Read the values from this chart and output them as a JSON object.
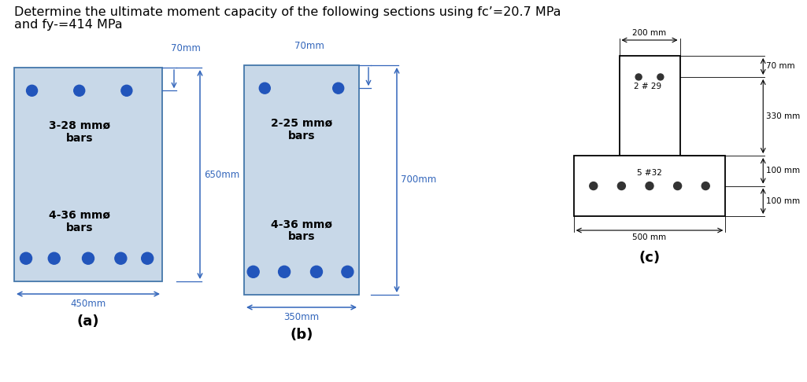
{
  "title_line1": "Determine the ultimate moment capacity of the following sections using fc’=20.7 MPa",
  "title_line2": "and fy-=414 MPa",
  "section_a": {
    "label": "(a)",
    "fill_color": "#c8d8e8",
    "bar_color": "#2255bb",
    "edge_color": "#4477aa",
    "top_bars_label": "3-28 mmø\nbars",
    "bot_bars_label": "4-36 mmø\nbars",
    "width_label": "450mm",
    "height_label": "650mm",
    "top_dim_label": "70mm"
  },
  "section_b": {
    "label": "(b)",
    "fill_color": "#c8d8e8",
    "bar_color": "#2255bb",
    "edge_color": "#4477aa",
    "top_bars_label": "2-25 mmø\nbars",
    "bot_bars_label": "4-36 mmø\nbars",
    "width_label": "350mm",
    "height_label": "700mm",
    "top_dim_label": "70mm"
  },
  "section_c": {
    "label": "(c)",
    "top_bar_label": "2 # 29",
    "bot_bar_label": "5 #32",
    "dim_200": "200 mm",
    "dim_500": "500 mm",
    "dim_70": "70 mm",
    "dim_330": "330 mm",
    "dim_100a": "100 mm",
    "dim_100b": "100 mm"
  },
  "bg_color": "#ffffff",
  "text_color": "#000000",
  "dim_color": "#3366bb",
  "title_fontsize": 11.5,
  "label_fontsize": 10,
  "dim_fontsize": 8.5,
  "c_fontsize": 7.5
}
